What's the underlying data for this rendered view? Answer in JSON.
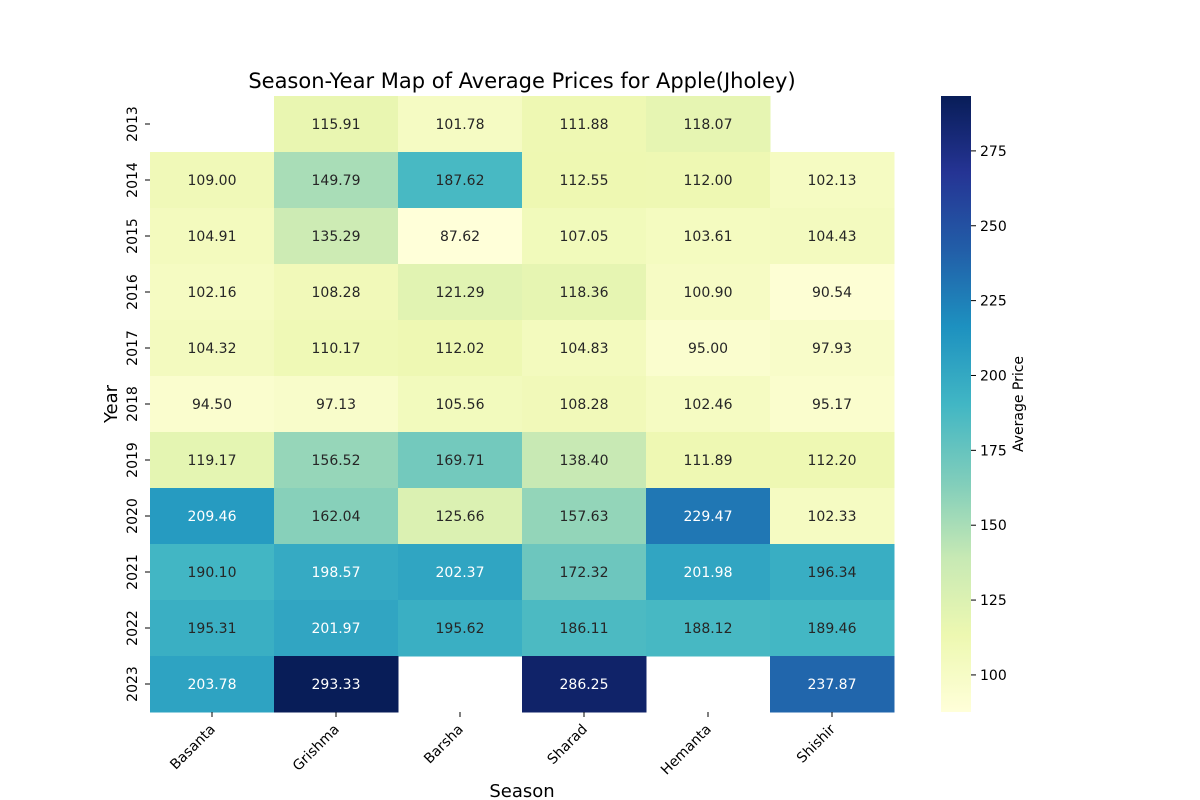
{
  "chart_data": {
    "type": "heatmap",
    "title": "Season-Year Map of Average Prices for Apple(Jholey)",
    "xlabel": "Season",
    "ylabel": "Year",
    "x": [
      "Basanta",
      "Grishma",
      "Barsha",
      "Sharad",
      "Hemanta",
      "Shishir"
    ],
    "y": [
      "2013",
      "2014",
      "2015",
      "2016",
      "2017",
      "2018",
      "2019",
      "2020",
      "2021",
      "2022",
      "2023"
    ],
    "values": [
      [
        null,
        115.91,
        101.78,
        111.88,
        118.07,
        null
      ],
      [
        109.0,
        149.79,
        187.62,
        112.55,
        112.0,
        102.13
      ],
      [
        104.91,
        135.29,
        87.62,
        107.05,
        103.61,
        104.43
      ],
      [
        102.16,
        108.28,
        121.29,
        118.36,
        100.9,
        90.54
      ],
      [
        104.32,
        110.17,
        112.02,
        104.83,
        95.0,
        97.93
      ],
      [
        94.5,
        97.13,
        105.56,
        108.28,
        102.46,
        95.17
      ],
      [
        119.17,
        156.52,
        169.71,
        138.4,
        111.89,
        112.2
      ],
      [
        209.46,
        162.04,
        125.66,
        157.63,
        229.47,
        102.33
      ],
      [
        190.1,
        198.57,
        202.37,
        172.32,
        201.98,
        196.34
      ],
      [
        195.31,
        201.97,
        195.62,
        186.11,
        188.12,
        189.46
      ],
      [
        203.78,
        293.33,
        null,
        286.25,
        null,
        237.87
      ]
    ],
    "colormap": "YlGnBu",
    "vmin": 87.62,
    "vmax": 293.33,
    "colorbar": {
      "label": "Average Price",
      "ticks": [
        100,
        125,
        150,
        175,
        200,
        225,
        250,
        275
      ]
    },
    "annotation_format": "2 decimals"
  }
}
